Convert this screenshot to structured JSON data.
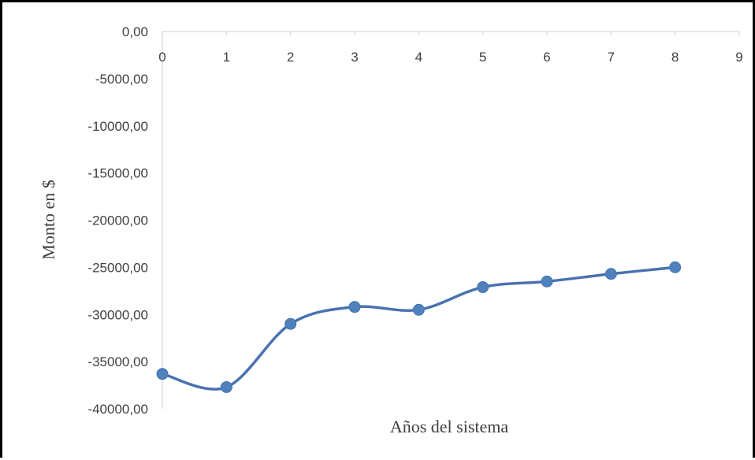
{
  "chart_data": {
    "type": "line",
    "xlabel": "Años del sistema",
    "ylabel": "Monto en $",
    "x": [
      0,
      1,
      2,
      3,
      4,
      5,
      6,
      7,
      8
    ],
    "series": [
      {
        "values": [
          -36300,
          -37700,
          -31000,
          -29200,
          -29500,
          -27100,
          -26500,
          -25700,
          -25000
        ]
      }
    ],
    "xlim": [
      0,
      9
    ],
    "ylim": [
      -40000,
      0
    ],
    "x_ticks": [
      "0",
      "1",
      "2",
      "3",
      "4",
      "5",
      "6",
      "7",
      "8",
      "9"
    ],
    "y_ticks": [
      "0,00",
      "-5000,00",
      "-10000,00",
      "-15000,00",
      "-20000,00",
      "-25000,00",
      "-30000,00",
      "-35000,00",
      "-40000,00"
    ],
    "y_tick_values": [
      0,
      -5000,
      -10000,
      -15000,
      -20000,
      -25000,
      -30000,
      -35000,
      -40000
    ],
    "smooth": true,
    "markers": true,
    "grid": false,
    "legend": "none",
    "colors": {
      "line": "#4a72b0",
      "marker": "#4f81bd",
      "axis": "#d9d9d9",
      "frame": "#000000"
    }
  }
}
